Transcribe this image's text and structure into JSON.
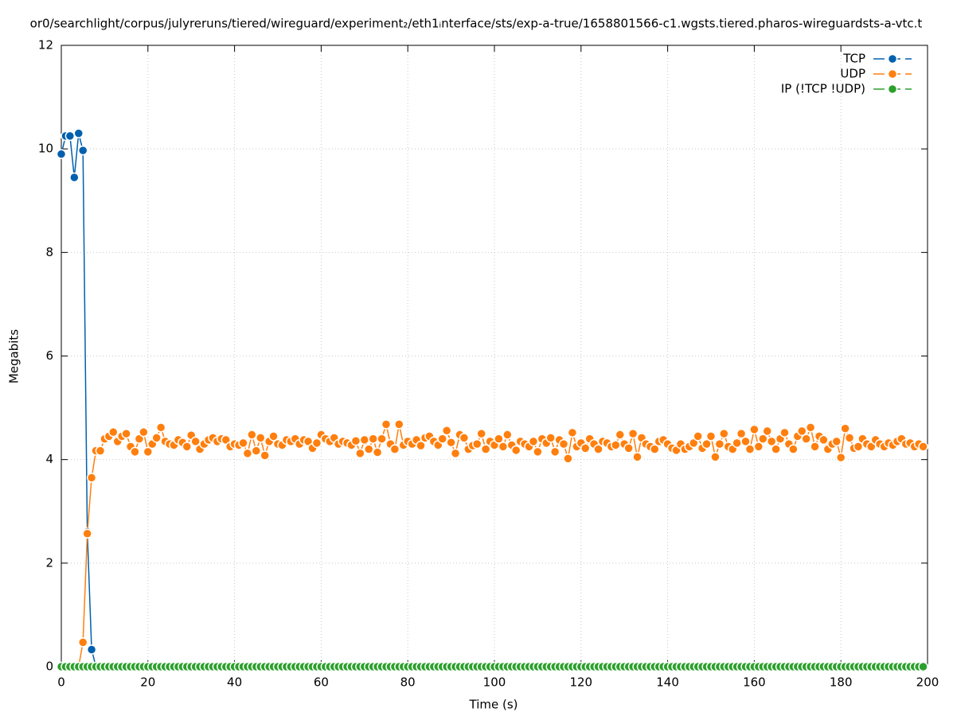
{
  "chart_data": {
    "type": "line",
    "title": "or0/searchlight/corpus/julyreruns/tiered/wireguard/experiment₂/eth1ᵢnterface/sts/exp-a-true/1658801566-c1.wgsts.tiered.pharos-wireguardsts-a-vtc.t",
    "x_label": "Time (s)",
    "y_label": "Megabits",
    "xlim": [
      0,
      200
    ],
    "ylim": [
      0,
      12
    ],
    "xticks": [
      0,
      20,
      40,
      60,
      80,
      100,
      120,
      140,
      160,
      180,
      200
    ],
    "yticks": [
      0,
      2,
      4,
      6,
      8,
      10,
      12
    ],
    "grid": true,
    "legend": "top-right",
    "x": [
      0,
      1,
      2,
      3,
      4,
      5,
      6,
      7,
      8,
      9,
      10,
      11,
      12,
      13,
      14,
      15,
      16,
      17,
      18,
      19,
      20,
      21,
      22,
      23,
      24,
      25,
      26,
      27,
      28,
      29,
      30,
      31,
      32,
      33,
      34,
      35,
      36,
      37,
      38,
      39,
      40,
      41,
      42,
      43,
      44,
      45,
      46,
      47,
      48,
      49,
      50,
      51,
      52,
      53,
      54,
      55,
      56,
      57,
      58,
      59,
      60,
      61,
      62,
      63,
      64,
      65,
      66,
      67,
      68,
      69,
      70,
      71,
      72,
      73,
      74,
      75,
      76,
      77,
      78,
      79,
      80,
      81,
      82,
      83,
      84,
      85,
      86,
      87,
      88,
      89,
      90,
      91,
      92,
      93,
      94,
      95,
      96,
      97,
      98,
      99,
      100,
      101,
      102,
      103,
      104,
      105,
      106,
      107,
      108,
      109,
      110,
      111,
      112,
      113,
      114,
      115,
      116,
      117,
      118,
      119,
      120,
      121,
      122,
      123,
      124,
      125,
      126,
      127,
      128,
      129,
      130,
      131,
      132,
      133,
      134,
      135,
      136,
      137,
      138,
      139,
      140,
      141,
      142,
      143,
      144,
      145,
      146,
      147,
      148,
      149,
      150,
      151,
      152,
      153,
      154,
      155,
      156,
      157,
      158,
      159,
      160,
      161,
      162,
      163,
      164,
      165,
      166,
      167,
      168,
      169,
      170,
      171,
      172,
      173,
      174,
      175,
      176,
      177,
      178,
      179,
      180,
      181,
      182,
      183,
      184,
      185,
      186,
      187,
      188,
      189,
      190,
      191,
      192,
      193,
      194,
      195,
      196,
      197,
      198,
      199
    ],
    "series": [
      {
        "name": "TCP",
        "color": "#0060ad",
        "values": [
          9.9,
          10.25,
          10.25,
          9.45,
          10.3,
          9.97,
          2.6,
          0.33,
          0,
          0,
          0,
          0,
          0,
          0,
          0,
          0,
          0,
          0,
          0,
          0,
          0,
          0,
          0,
          0,
          0,
          0,
          0,
          0,
          0,
          0,
          0,
          0,
          0,
          0,
          0,
          0,
          0,
          0,
          0,
          0,
          0,
          0,
          0,
          0,
          0,
          0,
          0,
          0,
          0,
          0,
          0,
          0,
          0,
          0,
          0,
          0,
          0,
          0,
          0,
          0,
          0,
          0,
          0,
          0,
          0,
          0,
          0,
          0,
          0,
          0,
          0,
          0,
          0,
          0,
          0,
          0,
          0,
          0,
          0,
          0,
          0,
          0,
          0,
          0,
          0,
          0,
          0,
          0,
          0,
          0,
          0,
          0,
          0,
          0,
          0,
          0,
          0,
          0,
          0,
          0,
          0,
          0,
          0,
          0,
          0,
          0,
          0,
          0,
          0,
          0,
          0,
          0,
          0,
          0,
          0,
          0,
          0,
          0,
          0,
          0,
          0,
          0,
          0,
          0,
          0,
          0,
          0,
          0,
          0,
          0,
          0,
          0,
          0,
          0,
          0,
          0,
          0,
          0,
          0,
          0,
          0,
          0,
          0,
          0,
          0,
          0,
          0,
          0,
          0,
          0,
          0,
          0,
          0,
          0,
          0,
          0,
          0,
          0,
          0,
          0,
          0,
          0,
          0,
          0,
          0,
          0,
          0,
          0,
          0,
          0,
          0,
          0,
          0,
          0,
          0,
          0,
          0,
          0,
          0,
          0,
          0,
          0,
          0,
          0,
          0,
          0,
          0,
          0,
          0,
          0,
          0,
          0,
          0,
          0,
          0,
          0,
          0,
          0,
          0,
          0
        ]
      },
      {
        "name": "UDP",
        "color": "#ff7f0e",
        "values": [
          0,
          0,
          0,
          0,
          0,
          0.47,
          2.57,
          3.65,
          4.17,
          4.17,
          4.4,
          4.45,
          4.53,
          4.35,
          4.45,
          4.5,
          4.25,
          4.15,
          4.4,
          4.53,
          4.15,
          4.3,
          4.42,
          4.62,
          4.35,
          4.3,
          4.28,
          4.38,
          4.33,
          4.25,
          4.47,
          4.35,
          4.2,
          4.3,
          4.38,
          4.42,
          4.35,
          4.4,
          4.38,
          4.25,
          4.3,
          4.28,
          4.32,
          4.12,
          4.48,
          4.17,
          4.42,
          4.08,
          4.35,
          4.45,
          4.3,
          4.28,
          4.38,
          4.35,
          4.4,
          4.3,
          4.38,
          4.35,
          4.22,
          4.32,
          4.48,
          4.4,
          4.35,
          4.42,
          4.3,
          4.35,
          4.32,
          4.28,
          4.36,
          4.12,
          4.38,
          4.2,
          4.4,
          4.14,
          4.4,
          4.68,
          4.3,
          4.2,
          4.68,
          4.28,
          4.35,
          4.3,
          4.38,
          4.27,
          4.42,
          4.45,
          4.35,
          4.28,
          4.4,
          4.56,
          4.33,
          4.12,
          4.48,
          4.42,
          4.2,
          4.27,
          4.3,
          4.5,
          4.2,
          4.35,
          4.28,
          4.4,
          4.25,
          4.48,
          4.28,
          4.18,
          4.35,
          4.3,
          4.25,
          4.35,
          4.15,
          4.4,
          4.32,
          4.42,
          4.15,
          4.38,
          4.3,
          4.02,
          4.52,
          4.25,
          4.32,
          4.22,
          4.4,
          4.3,
          4.2,
          4.35,
          4.32,
          4.25,
          4.28,
          4.48,
          4.3,
          4.22,
          4.5,
          4.05,
          4.42,
          4.3,
          4.25,
          4.2,
          4.35,
          4.38,
          4.3,
          4.22,
          4.18,
          4.3,
          4.2,
          4.25,
          4.32,
          4.45,
          4.22,
          4.3,
          4.45,
          4.05,
          4.3,
          4.5,
          4.25,
          4.2,
          4.32,
          4.5,
          4.35,
          4.2,
          4.58,
          4.25,
          4.4,
          4.55,
          4.35,
          4.2,
          4.4,
          4.52,
          4.3,
          4.2,
          4.45,
          4.55,
          4.4,
          4.62,
          4.25,
          4.45,
          4.38,
          4.2,
          4.3,
          4.35,
          4.04,
          4.6,
          4.42,
          4.22,
          4.25,
          4.4,
          4.3,
          4.25,
          4.38,
          4.3,
          4.25,
          4.32,
          4.28,
          4.35,
          4.4,
          4.3,
          4.32,
          4.25,
          4.3,
          4.25
        ]
      },
      {
        "name": "IP (!TCP  !UDP)",
        "color": "#2ca02c",
        "values": [
          0,
          0,
          0,
          0,
          0,
          0,
          0,
          0,
          0,
          0,
          0,
          0,
          0,
          0,
          0,
          0,
          0,
          0,
          0,
          0,
          0,
          0,
          0,
          0,
          0,
          0,
          0,
          0,
          0,
          0,
          0,
          0,
          0,
          0,
          0,
          0,
          0,
          0,
          0,
          0,
          0,
          0,
          0,
          0,
          0,
          0,
          0,
          0,
          0,
          0,
          0,
          0,
          0,
          0,
          0,
          0,
          0,
          0,
          0,
          0,
          0,
          0,
          0,
          0,
          0,
          0,
          0,
          0,
          0,
          0,
          0,
          0,
          0,
          0,
          0,
          0,
          0,
          0,
          0,
          0,
          0,
          0,
          0,
          0,
          0,
          0,
          0,
          0,
          0,
          0,
          0,
          0,
          0,
          0,
          0,
          0,
          0,
          0,
          0,
          0,
          0,
          0,
          0,
          0,
          0,
          0,
          0,
          0,
          0,
          0,
          0,
          0,
          0,
          0,
          0,
          0,
          0,
          0,
          0,
          0,
          0,
          0,
          0,
          0,
          0,
          0,
          0,
          0,
          0,
          0,
          0,
          0,
          0,
          0,
          0,
          0,
          0,
          0,
          0,
          0,
          0,
          0,
          0,
          0,
          0,
          0,
          0,
          0,
          0,
          0,
          0,
          0,
          0,
          0,
          0,
          0,
          0,
          0,
          0,
          0,
          0,
          0,
          0,
          0,
          0,
          0,
          0,
          0,
          0,
          0,
          0,
          0,
          0,
          0,
          0,
          0,
          0,
          0,
          0,
          0,
          0,
          0,
          0,
          0,
          0,
          0,
          0,
          0,
          0,
          0,
          0,
          0,
          0,
          0,
          0,
          0,
          0,
          0,
          0,
          0
        ]
      }
    ]
  }
}
